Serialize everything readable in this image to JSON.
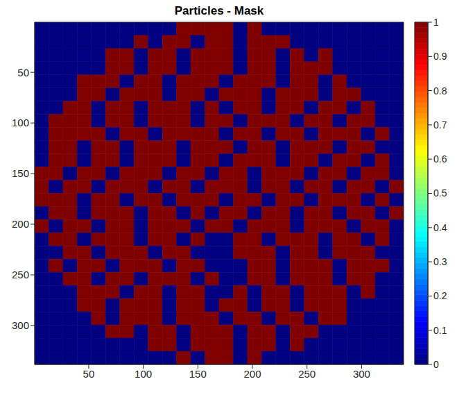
{
  "chart_data": {
    "type": "heatmap",
    "title": "Particles - Mask",
    "xlim": [
      0.5,
      338.5
    ],
    "ylim": [
      338.5,
      0.5
    ],
    "xticks": [
      50,
      100,
      150,
      200,
      250,
      300
    ],
    "yticks": [
      50,
      100,
      150,
      200,
      250,
      300
    ],
    "cells": [
      [
        0,
        0,
        0,
        0,
        0,
        0,
        0,
        0,
        0,
        0,
        1,
        1,
        1,
        1,
        0,
        1,
        0,
        0,
        0,
        0,
        0,
        0,
        0,
        0,
        0,
        0
      ],
      [
        0,
        0,
        0,
        0,
        0,
        0,
        0,
        1,
        0,
        1,
        1,
        0,
        1,
        1,
        0,
        1,
        1,
        1,
        0,
        0,
        0,
        0,
        0,
        0,
        0,
        0
      ],
      [
        0,
        0,
        0,
        0,
        0,
        1,
        1,
        0,
        1,
        1,
        0,
        1,
        1,
        1,
        0,
        1,
        1,
        0,
        1,
        0,
        1,
        0,
        0,
        0,
        0,
        0
      ],
      [
        0,
        0,
        0,
        0,
        0,
        1,
        1,
        0,
        1,
        1,
        0,
        1,
        1,
        1,
        0,
        1,
        1,
        0,
        1,
        1,
        1,
        0,
        0,
        0,
        0,
        0
      ],
      [
        0,
        0,
        0,
        1,
        1,
        1,
        0,
        1,
        1,
        0,
        1,
        1,
        1,
        0,
        1,
        1,
        1,
        0,
        1,
        1,
        0,
        1,
        0,
        0,
        0,
        0
      ],
      [
        0,
        0,
        0,
        1,
        1,
        0,
        1,
        1,
        1,
        0,
        1,
        1,
        0,
        1,
        1,
        1,
        0,
        1,
        1,
        1,
        0,
        1,
        1,
        0,
        0,
        0
      ],
      [
        0,
        0,
        1,
        1,
        0,
        1,
        1,
        0,
        1,
        1,
        1,
        0,
        1,
        0,
        1,
        1,
        0,
        1,
        1,
        0,
        1,
        1,
        0,
        1,
        0,
        0
      ],
      [
        0,
        1,
        1,
        1,
        0,
        1,
        1,
        0,
        1,
        1,
        1,
        0,
        1,
        1,
        0,
        1,
        1,
        1,
        0,
        1,
        1,
        0,
        1,
        1,
        0,
        0
      ],
      [
        0,
        1,
        1,
        1,
        1,
        0,
        1,
        1,
        0,
        1,
        1,
        1,
        1,
        0,
        1,
        1,
        0,
        1,
        1,
        0,
        1,
        1,
        1,
        0,
        1,
        0
      ],
      [
        0,
        1,
        1,
        0,
        1,
        1,
        0,
        1,
        1,
        1,
        0,
        1,
        1,
        1,
        0,
        1,
        1,
        0,
        1,
        1,
        1,
        0,
        1,
        1,
        0,
        0
      ],
      [
        0,
        1,
        1,
        0,
        1,
        1,
        0,
        1,
        1,
        1,
        0,
        1,
        1,
        0,
        1,
        1,
        1,
        0,
        1,
        1,
        0,
        1,
        1,
        0,
        1,
        0
      ],
      [
        1,
        1,
        0,
        1,
        1,
        0,
        1,
        1,
        1,
        0,
        1,
        1,
        0,
        1,
        1,
        0,
        1,
        1,
        1,
        0,
        1,
        1,
        0,
        1,
        1,
        0
      ],
      [
        1,
        0,
        1,
        1,
        0,
        1,
        1,
        1,
        0,
        1,
        1,
        0,
        1,
        1,
        1,
        0,
        1,
        1,
        0,
        1,
        1,
        0,
        1,
        1,
        0,
        1
      ],
      [
        1,
        1,
        1,
        0,
        1,
        1,
        0,
        1,
        1,
        0,
        1,
        1,
        1,
        0,
        1,
        1,
        0,
        1,
        1,
        0,
        1,
        1,
        1,
        0,
        1,
        0
      ],
      [
        0,
        1,
        1,
        0,
        1,
        1,
        1,
        0,
        1,
        1,
        0,
        1,
        0,
        1,
        1,
        0,
        1,
        1,
        0,
        1,
        1,
        0,
        1,
        1,
        0,
        1
      ],
      [
        1,
        0,
        1,
        1,
        0,
        1,
        1,
        0,
        1,
        1,
        1,
        0,
        1,
        1,
        0,
        1,
        1,
        1,
        0,
        1,
        1,
        1,
        0,
        1,
        1,
        0
      ],
      [
        0,
        1,
        1,
        0,
        1,
        1,
        1,
        0,
        1,
        1,
        0,
        1,
        0,
        0,
        1,
        1,
        0,
        1,
        1,
        1,
        0,
        1,
        1,
        0,
        1,
        0
      ],
      [
        0,
        0,
        1,
        1,
        0,
        1,
        1,
        1,
        0,
        1,
        1,
        0,
        0,
        0,
        1,
        1,
        1,
        0,
        1,
        1,
        0,
        1,
        1,
        1,
        0,
        0
      ],
      [
        0,
        1,
        0,
        1,
        1,
        0,
        1,
        1,
        1,
        0,
        1,
        1,
        0,
        0,
        0,
        1,
        1,
        0,
        1,
        1,
        1,
        0,
        1,
        1,
        1,
        0
      ],
      [
        0,
        0,
        1,
        1,
        0,
        1,
        1,
        0,
        1,
        1,
        1,
        0,
        1,
        0,
        0,
        1,
        1,
        0,
        1,
        1,
        1,
        0,
        1,
        1,
        0,
        0
      ],
      [
        0,
        0,
        0,
        1,
        1,
        1,
        0,
        1,
        1,
        0,
        1,
        1,
        0,
        0,
        1,
        0,
        1,
        1,
        0,
        1,
        1,
        1,
        0,
        1,
        0,
        0
      ],
      [
        0,
        0,
        0,
        1,
        1,
        0,
        1,
        1,
        1,
        0,
        1,
        1,
        0,
        1,
        1,
        0,
        1,
        1,
        0,
        1,
        1,
        1,
        0,
        0,
        0,
        0
      ],
      [
        0,
        0,
        0,
        0,
        1,
        0,
        1,
        1,
        1,
        0,
        1,
        1,
        1,
        0,
        1,
        1,
        0,
        1,
        1,
        0,
        1,
        1,
        0,
        0,
        0,
        0
      ],
      [
        0,
        0,
        0,
        0,
        0,
        1,
        1,
        0,
        1,
        1,
        0,
        1,
        1,
        1,
        0,
        1,
        1,
        0,
        1,
        1,
        0,
        0,
        0,
        0,
        0,
        0
      ],
      [
        0,
        0,
        0,
        0,
        0,
        0,
        0,
        0,
        1,
        1,
        0,
        1,
        1,
        1,
        0,
        1,
        1,
        0,
        1,
        0,
        0,
        0,
        0,
        0,
        0,
        0
      ],
      [
        0,
        0,
        0,
        0,
        0,
        0,
        0,
        0,
        0,
        0,
        1,
        0,
        1,
        1,
        0,
        1,
        0,
        0,
        0,
        0,
        0,
        0,
        0,
        0,
        0,
        0
      ]
    ],
    "colorbar": {
      "range": [
        0,
        1
      ],
      "ticks": [
        0,
        0.1,
        0.2,
        0.3,
        0.4,
        0.5,
        0.6,
        0.7,
        0.8,
        0.9,
        1
      ]
    }
  }
}
